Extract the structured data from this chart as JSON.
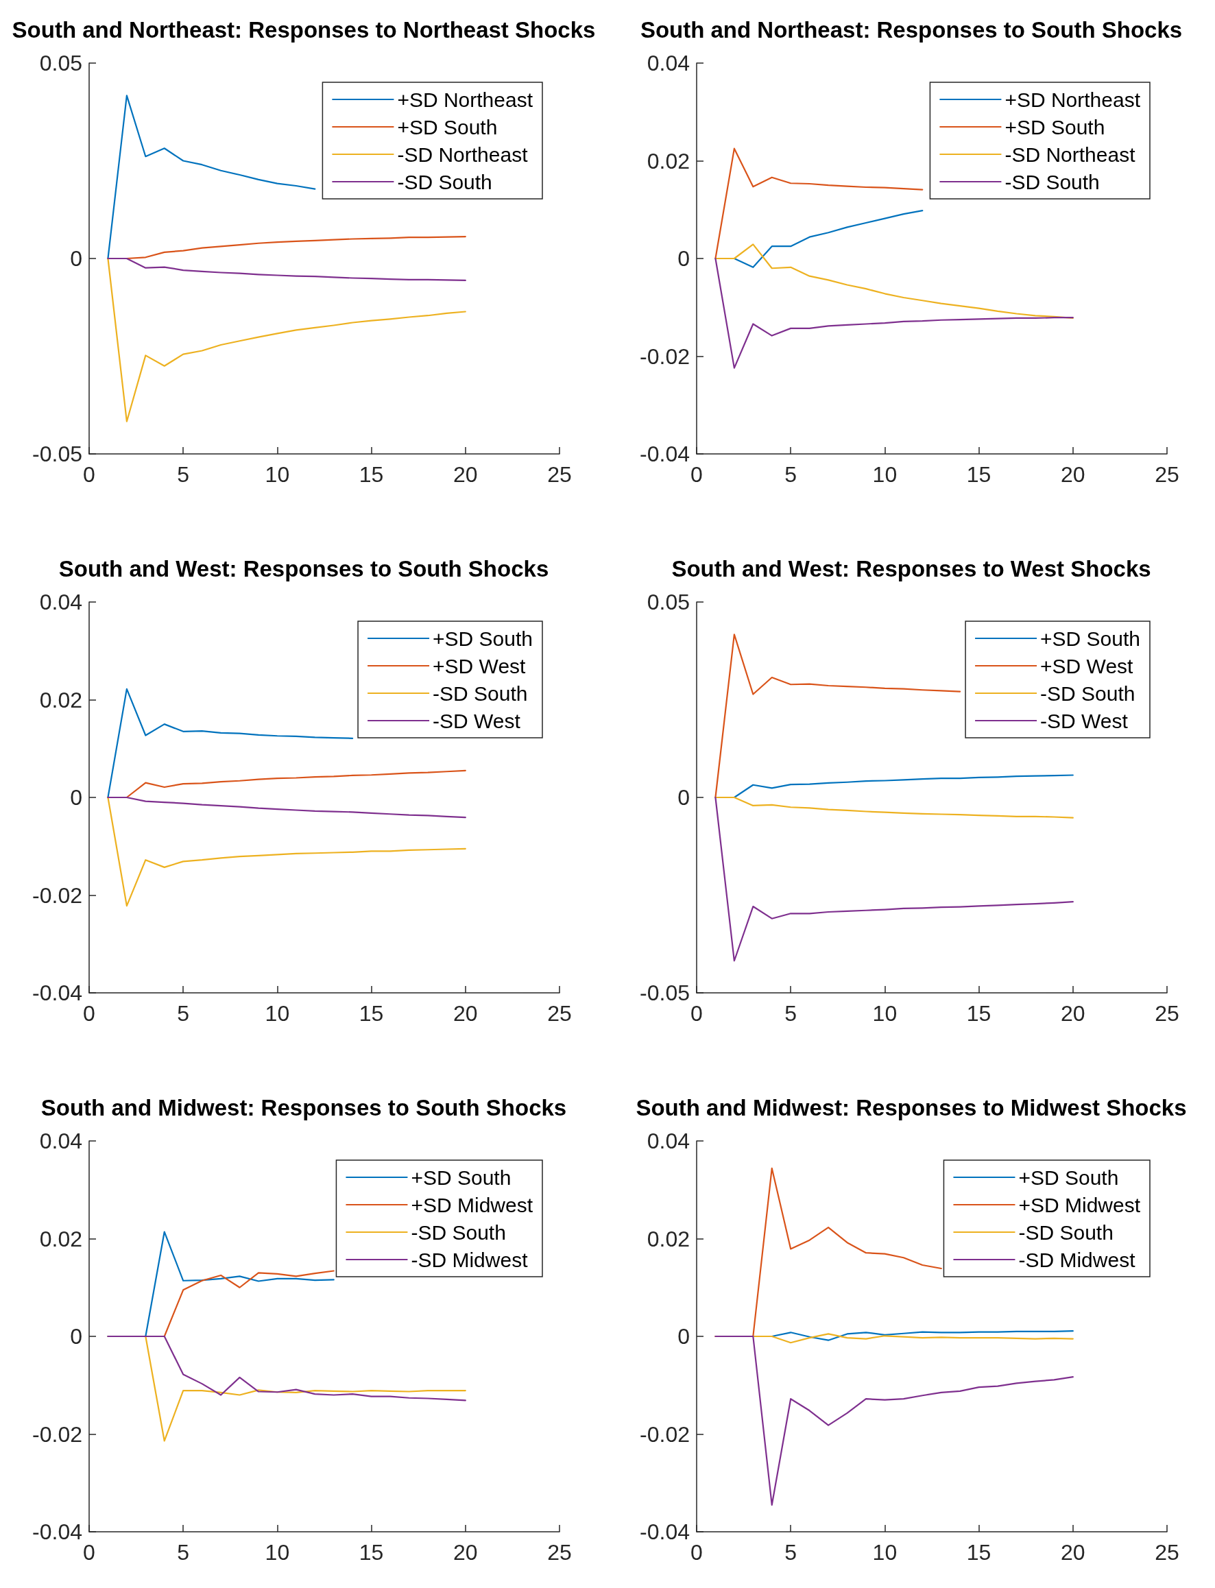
{
  "chart_data": [
    {
      "type": "line",
      "title": "South and Northeast: Responses to Northeast Shocks",
      "x": [
        1,
        2,
        3,
        4,
        5,
        6,
        7,
        8,
        9,
        10,
        11,
        12,
        13,
        14,
        15,
        16,
        17,
        18,
        19,
        20
      ],
      "xlim": [
        0,
        25
      ],
      "xticks": [
        0,
        5,
        10,
        15,
        20,
        25
      ],
      "ylim": [
        -0.05,
        0.05
      ],
      "yticks": [
        -0.05,
        0,
        0.05
      ],
      "grid": false,
      "legend": "top right",
      "marker": "none",
      "line_style": "solid",
      "series": [
        {
          "name": "+SD Northeast",
          "color": "#0072bd",
          "values": [
            0,
            0.0417,
            0.0261,
            0.0282,
            0.025,
            0.024,
            0.0225,
            0.0214,
            0.0202,
            0.0192,
            0.0186,
            0.0178,
            null,
            null,
            null,
            null,
            null,
            null,
            null,
            null
          ]
        },
        {
          "name": "+SD South",
          "color": "#d95319",
          "values": [
            0,
            0,
            0.0003,
            0.0016,
            0.002,
            0.0027,
            0.0031,
            0.0035,
            0.0039,
            0.0042,
            0.0044,
            0.0046,
            0.0048,
            0.005,
            0.0051,
            0.0052,
            0.0054,
            0.0054,
            0.0055,
            0.0056
          ]
        },
        {
          "name": "-SD Northeast",
          "color": "#edb120",
          "values": [
            0,
            -0.0417,
            -0.0248,
            -0.0275,
            -0.0245,
            -0.0236,
            -0.0221,
            -0.0211,
            -0.0201,
            -0.0192,
            -0.0183,
            -0.0177,
            -0.0171,
            -0.0164,
            -0.0159,
            -0.0155,
            -0.015,
            -0.0146,
            -0.014,
            -0.0136
          ]
        },
        {
          "name": "-SD South",
          "color": "#7e2f8e",
          "values": [
            0,
            0,
            -0.0024,
            -0.0022,
            -0.003,
            -0.0033,
            -0.0036,
            -0.0038,
            -0.0041,
            -0.0043,
            -0.0045,
            -0.0046,
            -0.0048,
            -0.005,
            -0.0051,
            -0.0053,
            -0.0054,
            -0.0054,
            -0.0055,
            -0.0056
          ]
        }
      ]
    },
    {
      "type": "line",
      "title": "South and Northeast: Responses to South Shocks",
      "x": [
        1,
        2,
        3,
        4,
        5,
        6,
        7,
        8,
        9,
        10,
        11,
        12,
        13,
        14,
        15,
        16,
        17,
        18,
        19,
        20
      ],
      "xlim": [
        0,
        25
      ],
      "xticks": [
        0,
        5,
        10,
        15,
        20,
        25
      ],
      "ylim": [
        -0.04,
        0.04
      ],
      "yticks": [
        -0.04,
        -0.02,
        0,
        0.02,
        0.04
      ],
      "grid": false,
      "legend": "top right",
      "marker": "none",
      "line_style": "solid",
      "series": [
        {
          "name": "+SD Northeast",
          "color": "#0072bd",
          "values": [
            0,
            0,
            -0.0018,
            0.0025,
            0.0025,
            0.0044,
            0.0053,
            0.0064,
            0.0073,
            0.0082,
            0.0091,
            0.0098,
            null,
            null,
            null,
            null,
            null,
            null,
            null,
            null
          ]
        },
        {
          "name": "+SD South",
          "color": "#d95319",
          "values": [
            0,
            0.0225,
            0.0147,
            0.0166,
            0.0154,
            0.0153,
            0.015,
            0.0148,
            0.0146,
            0.0145,
            0.0143,
            0.0141,
            null,
            null,
            null,
            null,
            null,
            null,
            null,
            null
          ]
        },
        {
          "name": "-SD Northeast",
          "color": "#edb120",
          "values": [
            0,
            0,
            0.0029,
            -0.002,
            -0.0018,
            -0.0036,
            -0.0044,
            -0.0054,
            -0.0062,
            -0.0072,
            -0.008,
            -0.0086,
            -0.0092,
            -0.0097,
            -0.0102,
            -0.0108,
            -0.0113,
            -0.0117,
            -0.0119,
            -0.0122
          ]
        },
        {
          "name": "-SD South",
          "color": "#7e2f8e",
          "values": [
            0,
            -0.0224,
            -0.0134,
            -0.0158,
            -0.0143,
            -0.0143,
            -0.0138,
            -0.0136,
            -0.0134,
            -0.0132,
            -0.0129,
            -0.0128,
            -0.0126,
            -0.0125,
            -0.0124,
            -0.0123,
            -0.0122,
            -0.0122,
            -0.0121,
            -0.0121
          ]
        }
      ]
    },
    {
      "type": "line",
      "title": "South and West: Responses to South Shocks",
      "x": [
        1,
        2,
        3,
        4,
        5,
        6,
        7,
        8,
        9,
        10,
        11,
        12,
        13,
        14,
        15,
        16,
        17,
        18,
        19,
        20
      ],
      "xlim": [
        0,
        25
      ],
      "xticks": [
        0,
        5,
        10,
        15,
        20,
        25
      ],
      "ylim": [
        -0.04,
        0.04
      ],
      "yticks": [
        -0.04,
        -0.02,
        0,
        0.02,
        0.04
      ],
      "grid": false,
      "legend": "top right",
      "marker": "none",
      "line_style": "solid",
      "series": [
        {
          "name": "+SD South",
          "color": "#0072bd",
          "values": [
            0,
            0.0222,
            0.0127,
            0.015,
            0.0135,
            0.0136,
            0.0132,
            0.0131,
            0.0128,
            0.0126,
            0.0125,
            0.0123,
            0.0122,
            0.0121,
            null,
            null,
            null,
            null,
            null,
            null
          ]
        },
        {
          "name": "+SD West",
          "color": "#d95319",
          "values": [
            0,
            0,
            0.003,
            0.0021,
            0.0028,
            0.0029,
            0.0032,
            0.0034,
            0.0037,
            0.0039,
            0.004,
            0.0042,
            0.0043,
            0.0045,
            0.0046,
            0.0048,
            0.005,
            0.0051,
            0.0053,
            0.0055
          ]
        },
        {
          "name": "-SD South",
          "color": "#edb120",
          "values": [
            0,
            -0.0222,
            -0.0128,
            -0.0143,
            -0.0131,
            -0.0128,
            -0.0124,
            -0.0121,
            -0.0119,
            -0.0117,
            -0.0115,
            -0.0114,
            -0.0113,
            -0.0112,
            -0.011,
            -0.011,
            -0.0108,
            -0.0107,
            -0.0106,
            -0.0105
          ]
        },
        {
          "name": "-SD West",
          "color": "#7e2f8e",
          "values": [
            0,
            0,
            -0.0008,
            -0.001,
            -0.0012,
            -0.0015,
            -0.0017,
            -0.0019,
            -0.0022,
            -0.0024,
            -0.0026,
            -0.0028,
            -0.0029,
            -0.003,
            -0.0032,
            -0.0034,
            -0.0036,
            -0.0037,
            -0.0039,
            -0.0041
          ]
        }
      ]
    },
    {
      "type": "line",
      "title": "South and West: Responses to West Shocks",
      "x": [
        1,
        2,
        3,
        4,
        5,
        6,
        7,
        8,
        9,
        10,
        11,
        12,
        13,
        14,
        15,
        16,
        17,
        18,
        19,
        20
      ],
      "xlim": [
        0,
        25
      ],
      "xticks": [
        0,
        5,
        10,
        15,
        20,
        25
      ],
      "ylim": [
        -0.05,
        0.05
      ],
      "yticks": [
        -0.05,
        0,
        0.05
      ],
      "grid": false,
      "legend": "top right",
      "marker": "none",
      "line_style": "solid",
      "series": [
        {
          "name": "+SD South",
          "color": "#0072bd",
          "values": [
            0,
            0,
            0.0032,
            0.0024,
            0.0033,
            0.0034,
            0.0037,
            0.0039,
            0.0042,
            0.0043,
            0.0045,
            0.0047,
            0.0049,
            0.0049,
            0.0051,
            0.0052,
            0.0054,
            0.0055,
            0.0056,
            0.0057
          ]
        },
        {
          "name": "+SD West",
          "color": "#d95319",
          "values": [
            0,
            0.0417,
            0.0264,
            0.0307,
            0.0289,
            0.029,
            0.0286,
            0.0284,
            0.0282,
            0.0279,
            0.0278,
            0.0275,
            0.0273,
            0.0271,
            null,
            null,
            null,
            null,
            null,
            null
          ]
        },
        {
          "name": "-SD South",
          "color": "#edb120",
          "values": [
            0,
            0,
            -0.0021,
            -0.0019,
            -0.0025,
            -0.0027,
            -0.0031,
            -0.0033,
            -0.0036,
            -0.0038,
            -0.004,
            -0.0042,
            -0.0043,
            -0.0044,
            -0.0046,
            -0.0047,
            -0.0049,
            -0.0049,
            -0.005,
            -0.0052
          ]
        },
        {
          "name": "-SD West",
          "color": "#7e2f8e",
          "values": [
            0,
            -0.0418,
            -0.0279,
            -0.031,
            -0.0297,
            -0.0297,
            -0.0293,
            -0.0291,
            -0.0289,
            -0.0287,
            -0.0284,
            -0.0283,
            -0.0281,
            -0.028,
            -0.0278,
            -0.0276,
            -0.0274,
            -0.0272,
            -0.027,
            -0.0267
          ]
        }
      ]
    },
    {
      "type": "line",
      "title": "South and Midwest: Responses to South Shocks",
      "x": [
        1,
        2,
        3,
        4,
        5,
        6,
        7,
        8,
        9,
        10,
        11,
        12,
        13,
        14,
        15,
        16,
        17,
        18,
        19,
        20
      ],
      "xlim": [
        0,
        25
      ],
      "xticks": [
        0,
        5,
        10,
        15,
        20,
        25
      ],
      "ylim": [
        -0.04,
        0.04
      ],
      "yticks": [
        -0.04,
        -0.02,
        0,
        0.02,
        0.04
      ],
      "grid": false,
      "legend": "top right",
      "marker": "none",
      "line_style": "solid",
      "series": [
        {
          "name": "+SD South",
          "color": "#0072bd",
          "values": [
            0,
            0,
            0,
            0.0214,
            0.0114,
            0.0115,
            0.0118,
            0.0123,
            0.0113,
            0.0118,
            0.0118,
            0.0115,
            0.0116,
            null,
            null,
            null,
            null,
            null,
            null,
            null
          ]
        },
        {
          "name": "+SD Midwest",
          "color": "#d95319",
          "values": [
            null,
            null,
            0,
            0,
            0.0095,
            0.0114,
            0.0125,
            0.01,
            0.013,
            0.0128,
            0.0123,
            0.0129,
            0.0134,
            null,
            null,
            null,
            null,
            null,
            null,
            null
          ]
        },
        {
          "name": "-SD South",
          "color": "#edb120",
          "values": [
            0,
            0,
            0,
            -0.0214,
            -0.0111,
            -0.0111,
            -0.0115,
            -0.012,
            -0.011,
            -0.0114,
            -0.0115,
            -0.0111,
            -0.0112,
            -0.0113,
            -0.0111,
            -0.0112,
            -0.0113,
            -0.0111,
            -0.0111,
            -0.0111
          ]
        },
        {
          "name": "-SD Midwest",
          "color": "#7e2f8e",
          "values": [
            0,
            0,
            0,
            0,
            -0.0078,
            -0.0097,
            -0.012,
            -0.0084,
            -0.0113,
            -0.0114,
            -0.0109,
            -0.0118,
            -0.012,
            -0.0118,
            -0.0123,
            -0.0123,
            -0.0126,
            -0.0127,
            -0.0129,
            -0.0131
          ]
        }
      ]
    },
    {
      "type": "line",
      "title": "South and Midwest: Responses to Midwest Shocks",
      "x": [
        1,
        2,
        3,
        4,
        5,
        6,
        7,
        8,
        9,
        10,
        11,
        12,
        13,
        14,
        15,
        16,
        17,
        18,
        19,
        20
      ],
      "xlim": [
        0,
        25
      ],
      "xticks": [
        0,
        5,
        10,
        15,
        20,
        25
      ],
      "ylim": [
        -0.04,
        0.04
      ],
      "yticks": [
        -0.04,
        -0.02,
        0,
        0.02,
        0.04
      ],
      "grid": false,
      "legend": "top right",
      "marker": "none",
      "line_style": "solid",
      "series": [
        {
          "name": "+SD South",
          "color": "#0072bd",
          "values": [
            null,
            null,
            0,
            0,
            0.0008,
            -0.0001,
            -0.0008,
            0.0005,
            0.0008,
            0.0003,
            0.0006,
            0.0009,
            0.0008,
            0.0008,
            0.0009,
            0.0009,
            0.001,
            0.001,
            0.001,
            0.0011
          ]
        },
        {
          "name": "+SD Midwest",
          "color": "#d95319",
          "values": [
            0,
            0,
            0,
            0.0344,
            0.0179,
            0.0197,
            0.0223,
            0.0192,
            0.0171,
            0.0169,
            0.0161,
            0.0146,
            0.0139,
            null,
            null,
            null,
            null,
            null,
            null,
            null
          ]
        },
        {
          "name": "-SD South",
          "color": "#edb120",
          "values": [
            0,
            0,
            0,
            0,
            -0.0013,
            -0.0003,
            0.0005,
            -0.0003,
            -0.0005,
            0.0001,
            -0.0001,
            -0.0003,
            -0.0002,
            -0.0003,
            -0.0003,
            -0.0003,
            -0.0004,
            -0.0005,
            -0.0004,
            -0.0005
          ]
        },
        {
          "name": "-SD Midwest",
          "color": "#7e2f8e",
          "values": [
            0,
            0,
            0,
            -0.0345,
            -0.0128,
            -0.0152,
            -0.0182,
            -0.0157,
            -0.0128,
            -0.013,
            -0.0128,
            -0.0121,
            -0.0115,
            -0.0112,
            -0.0104,
            -0.0102,
            -0.0096,
            -0.0092,
            -0.0089,
            -0.0083
          ]
        }
      ]
    }
  ]
}
